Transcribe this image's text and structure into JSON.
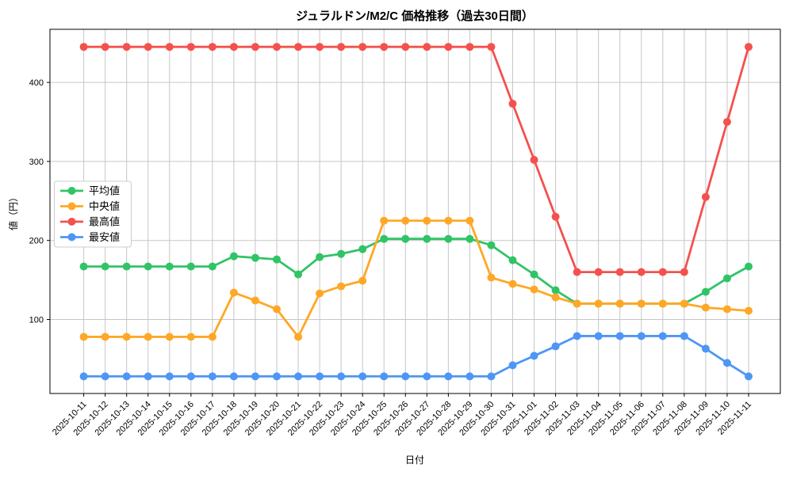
{
  "title": "ジュラルドン/M2/C 価格推移（過去30日間）",
  "chart_data": {
    "type": "line",
    "title": "ジュラルドン/M2/C 価格推移（過去30日間）",
    "xlabel": "日付",
    "ylabel": "値（円）",
    "grid": true,
    "legend_position": "center left",
    "yticks": [
      100,
      200,
      300,
      400
    ],
    "ylim": [
      6,
      466
    ],
    "x": [
      "2025-10-11",
      "2025-10-12",
      "2025-10-13",
      "2025-10-14",
      "2025-10-15",
      "2025-10-16",
      "2025-10-17",
      "2025-10-18",
      "2025-10-19",
      "2025-10-20",
      "2025-10-21",
      "2025-10-22",
      "2025-10-23",
      "2025-10-24",
      "2025-10-25",
      "2025-10-26",
      "2025-10-27",
      "2025-10-28",
      "2025-10-29",
      "2025-10-30",
      "2025-10-31",
      "2025-11-01",
      "2025-11-02",
      "2025-11-03",
      "2025-11-04",
      "2025-11-05",
      "2025-11-06",
      "2025-11-07",
      "2025-11-08",
      "2025-11-09",
      "2025-11-10",
      "2025-11-11"
    ],
    "series": [
      {
        "id": "average",
        "name": "平均値",
        "color": "#30c466",
        "values": [
          167,
          167,
          167,
          167,
          167,
          167,
          167,
          180,
          178,
          176,
          157,
          179,
          183,
          189,
          202,
          202,
          202,
          202,
          202,
          194,
          175,
          157,
          137,
          120,
          120,
          120,
          120,
          120,
          120,
          135,
          152,
          167
        ]
      },
      {
        "id": "median",
        "name": "中央値",
        "color": "#ffa726",
        "values": [
          78,
          78,
          78,
          78,
          78,
          78,
          78,
          134,
          124,
          113,
          78,
          133,
          142,
          149,
          225,
          225,
          225,
          225,
          225,
          153,
          145,
          138,
          128,
          120,
          120,
          120,
          120,
          120,
          120,
          115,
          113,
          111
        ]
      },
      {
        "id": "max",
        "name": "最高値",
        "color": "#f4514e",
        "values": [
          445,
          445,
          445,
          445,
          445,
          445,
          445,
          445,
          445,
          445,
          445,
          445,
          445,
          445,
          445,
          445,
          445,
          445,
          445,
          445,
          373,
          302,
          230,
          160,
          160,
          160,
          160,
          160,
          160,
          255,
          350,
          445
        ]
      },
      {
        "id": "min",
        "name": "最安値",
        "color": "#4d96f5",
        "values": [
          28,
          28,
          28,
          28,
          28,
          28,
          28,
          28,
          28,
          28,
          28,
          28,
          28,
          28,
          28,
          28,
          28,
          28,
          28,
          28,
          42,
          54,
          66,
          79,
          79,
          79,
          79,
          79,
          79,
          63,
          45,
          28
        ]
      }
    ],
    "colors": {
      "grid": "#c6c6c6",
      "spine": "#000000",
      "legend_border": "#cccccc",
      "background": "#ffffff"
    }
  }
}
